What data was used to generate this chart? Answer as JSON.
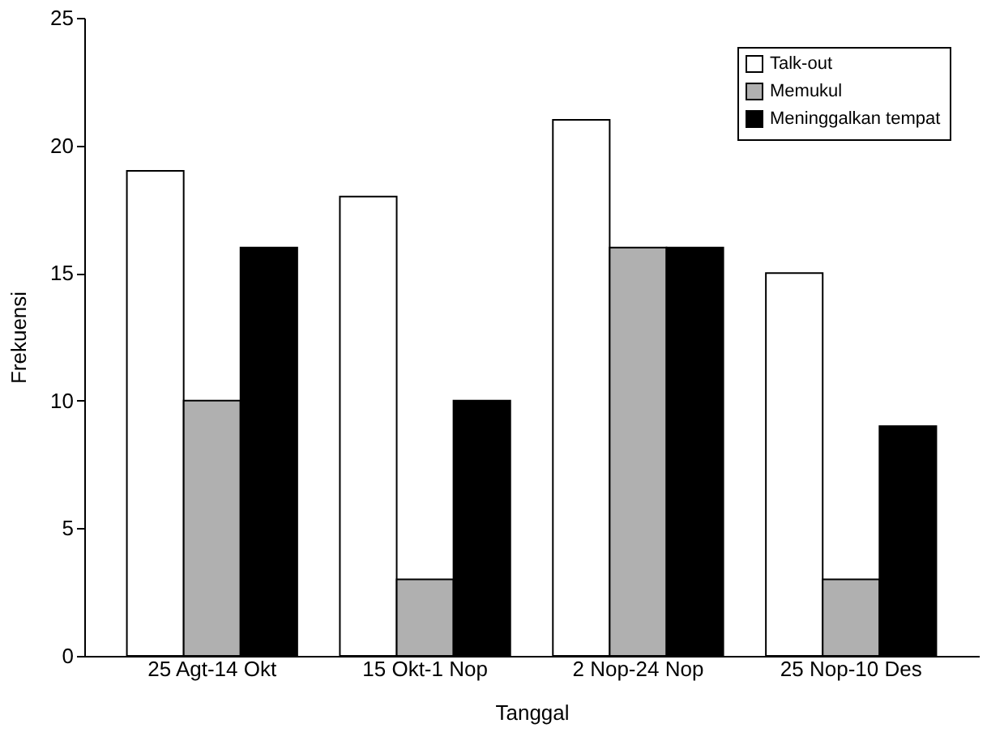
{
  "chart_data": {
    "type": "bar",
    "xlabel": "Tanggal",
    "ylabel": "Frekuensi",
    "categories": [
      "25 Agt-14 Okt",
      "15 Okt-1 Nop",
      "2 Nop-24 Nop",
      "25 Nop-10 Des"
    ],
    "series": [
      {
        "name": "Talk-out",
        "color": "#ffffff",
        "values": [
          19,
          18,
          21,
          15
        ]
      },
      {
        "name": "Memukul",
        "color": "#b0b0b0",
        "values": [
          10,
          3,
          16,
          3
        ]
      },
      {
        "name": "Meninggalkan tempat",
        "color": "#000000",
        "values": [
          16,
          10,
          16,
          9
        ]
      }
    ],
    "ylim": [
      0,
      25
    ],
    "yticks": [
      0,
      5,
      10,
      15,
      20,
      25
    ],
    "grid": false,
    "legend": "top right"
  }
}
